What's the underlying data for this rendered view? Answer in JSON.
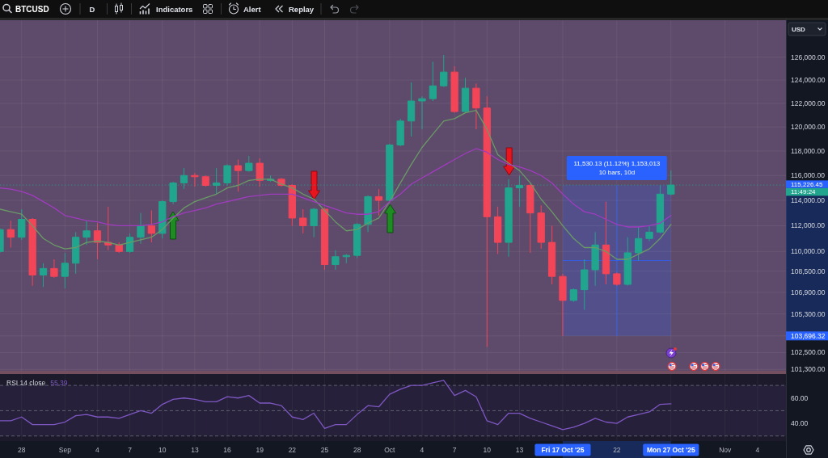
{
  "chart_data": [
    {
      "type": "candlestick",
      "title": "BTCUSD",
      "x": [
        "2025-08-26",
        "2025-08-27",
        "2025-08-28",
        "2025-08-29",
        "2025-08-30",
        "2025-08-31",
        "2025-09-01",
        "2025-09-02",
        "2025-09-03",
        "2025-09-04",
        "2025-09-05",
        "2025-09-06",
        "2025-09-07",
        "2025-09-08",
        "2025-09-09",
        "2025-09-10",
        "2025-09-11",
        "2025-09-12",
        "2025-09-13",
        "2025-09-14",
        "2025-09-15",
        "2025-09-16",
        "2025-09-17",
        "2025-09-18",
        "2025-09-19",
        "2025-09-20",
        "2025-09-21",
        "2025-09-22",
        "2025-09-23",
        "2025-09-24",
        "2025-09-25",
        "2025-09-26",
        "2025-09-27",
        "2025-09-28",
        "2025-09-29",
        "2025-09-30",
        "2025-10-01",
        "2025-10-02",
        "2025-10-03",
        "2025-10-04",
        "2025-10-05",
        "2025-10-06",
        "2025-10-07",
        "2025-10-08",
        "2025-10-09",
        "2025-10-10",
        "2025-10-11",
        "2025-10-12",
        "2025-10-13",
        "2025-10-14",
        "2025-10-15",
        "2025-10-16",
        "2025-10-17",
        "2025-10-18",
        "2025-10-19",
        "2025-10-20",
        "2025-10-21",
        "2025-10-22",
        "2025-10-23",
        "2025-10-24",
        "2025-10-25",
        "2025-10-26",
        "2025-10-27"
      ],
      "ohlc": [
        [
          110000,
          111800,
          109900,
          111700
        ],
        [
          111700,
          112400,
          110300,
          111100
        ],
        [
          111100,
          113300,
          110900,
          112500
        ],
        [
          112500,
          112600,
          107400,
          108200
        ],
        [
          108200,
          109100,
          107300,
          108700
        ],
        [
          108700,
          109400,
          108000,
          108100
        ],
        [
          108100,
          109900,
          107200,
          109100
        ],
        [
          109100,
          111500,
          108300,
          111100
        ],
        [
          111100,
          112400,
          110500,
          111600
        ],
        [
          111600,
          112200,
          109400,
          110700
        ],
        [
          110700,
          113500,
          110100,
          110500
        ],
        [
          110500,
          110700,
          109900,
          110000
        ],
        [
          110000,
          111400,
          109900,
          111100
        ],
        [
          111100,
          113000,
          110600,
          112000
        ],
        [
          112000,
          113200,
          110700,
          111400
        ],
        [
          111400,
          114000,
          111000,
          113900
        ],
        [
          113900,
          115500,
          113700,
          115400
        ],
        [
          115400,
          116600,
          114900,
          116000
        ],
        [
          116000,
          116200,
          115100,
          115900
        ],
        [
          115900,
          116000,
          115100,
          115200
        ],
        [
          115200,
          116600,
          114500,
          115400
        ],
        [
          115400,
          116900,
          115200,
          116800
        ],
        [
          116800,
          117300,
          114700,
          116400
        ],
        [
          116400,
          117600,
          116300,
          117000
        ],
        [
          117000,
          117400,
          115100,
          115600
        ],
        [
          115600,
          116000,
          115500,
          115700
        ],
        [
          115700,
          115800,
          115100,
          115200
        ],
        [
          115200,
          115300,
          112000,
          112600
        ],
        [
          112600,
          113300,
          111400,
          112000
        ],
        [
          112000,
          113400,
          111100,
          113300
        ],
        [
          113300,
          113400,
          108600,
          109000
        ],
        [
          109000,
          110100,
          108600,
          109600
        ],
        [
          109600,
          109800,
          109100,
          109700
        ],
        [
          109700,
          112200,
          109500,
          112100
        ],
        [
          112100,
          114400,
          111500,
          114300
        ],
        [
          114300,
          114900,
          112800,
          114000
        ],
        [
          114000,
          118600,
          113900,
          118500
        ],
        [
          118500,
          120700,
          118400,
          120500
        ],
        [
          120500,
          123800,
          119200,
          122200
        ],
        [
          122200,
          122600,
          119800,
          122400
        ],
        [
          122400,
          125600,
          122200,
          123500
        ],
        [
          123500,
          126200,
          123400,
          124700
        ],
        [
          124700,
          125200,
          121200,
          121300
        ],
        [
          121300,
          124200,
          121200,
          123300
        ],
        [
          123300,
          123700,
          119800,
          121600
        ],
        [
          121600,
          122600,
          102900,
          112700
        ],
        [
          112700,
          113500,
          109800,
          110700
        ],
        [
          110700,
          115700,
          109600,
          115000
        ],
        [
          115000,
          116000,
          113500,
          115200
        ],
        [
          115200,
          115300,
          109900,
          113000
        ],
        [
          113000,
          113600,
          110200,
          110700
        ],
        [
          110700,
          112000,
          107500,
          108100
        ],
        [
          108100,
          108300,
          103696.32,
          106300
        ],
        [
          106300,
          107200,
          106200,
          107100
        ],
        [
          107100,
          109400,
          105600,
          108600
        ],
        [
          108600,
          111500,
          107400,
          110500
        ],
        [
          110500,
          113900,
          107500,
          108300
        ],
        [
          108300,
          108400,
          107400,
          107500
        ],
        [
          107500,
          111100,
          107400,
          109900
        ],
        [
          109900,
          111900,
          109300,
          111000
        ],
        [
          111000,
          112000,
          110800,
          111500
        ],
        [
          111500,
          115200,
          111400,
          114500
        ],
        [
          114500,
          116400,
          114400,
          115226.45
        ]
      ],
      "colors": [
        "#22a58e",
        "#f24558",
        "#22a58e",
        "#f24558",
        "#22a58e",
        "#f24558",
        "#22a58e",
        "#22a58e",
        "#22a58e",
        "#f24558",
        "#f24558",
        "#f24558",
        "#22a58e",
        "#22a58e",
        "#f24558",
        "#22a58e",
        "#22a58e",
        "#22a58e",
        "#f24558",
        "#f24558",
        "#22a58e",
        "#22a58e",
        "#f24558",
        "#22a58e",
        "#f24558",
        "#22a58e",
        "#f24558",
        "#f24558",
        "#f24558",
        "#22a58e",
        "#f24558",
        "#22a58e",
        "#22a58e",
        "#22a58e",
        "#22a58e",
        "#f24558",
        "#22a58e",
        "#22a58e",
        "#22a58e",
        "#22a58e",
        "#22a58e",
        "#22a58e",
        "#f24558",
        "#22a58e",
        "#f24558",
        "#f24558",
        "#f24558",
        "#22a58e",
        "#22a58e",
        "#f24558",
        "#f24558",
        "#f24558",
        "#f24558",
        "#22a58e",
        "#22a58e",
        "#22a58e",
        "#f24558",
        "#f24558",
        "#22a58e",
        "#22a58e",
        "#22a58e",
        "#22a58e",
        "#22a58e"
      ],
      "series": [
        {
          "type": "line",
          "color": "#6a9a66",
          "values": [
            113300,
            113100,
            112900,
            112000,
            111000,
            110500,
            110200,
            110300,
            110700,
            110800,
            110700,
            110500,
            110700,
            110900,
            111100,
            111700,
            112600,
            113400,
            113900,
            114200,
            114500,
            115000,
            115200,
            115600,
            115700,
            115700,
            115300,
            115000,
            114500,
            114100,
            113200,
            112300,
            111600,
            111700,
            112200,
            112600,
            113900,
            115400,
            116900,
            118300,
            119400,
            120500,
            120700,
            121200,
            121400,
            119800,
            117700,
            117000,
            116400,
            115400,
            114100,
            113100,
            112000,
            111000,
            110300,
            110300,
            110000,
            109400,
            109400,
            109800,
            110200,
            111000,
            112100
          ]
        },
        {
          "type": "line",
          "color": "#a03cc0",
          "values": [
            115000,
            114900,
            114700,
            114400,
            113900,
            113400,
            112800,
            112600,
            112400,
            112300,
            112100,
            112000,
            112000,
            112000,
            112100,
            112300,
            112700,
            113000,
            113200,
            113400,
            113700,
            113900,
            114100,
            114300,
            114400,
            114500,
            114500,
            114500,
            114200,
            113900,
            113600,
            113300,
            113000,
            112900,
            112900,
            113100,
            113900,
            114500,
            115300,
            115800,
            116300,
            116800,
            117300,
            117800,
            118200,
            117900,
            117300,
            116900,
            116700,
            116400,
            116000,
            115400,
            114500,
            113700,
            113100,
            112900,
            112500,
            112100,
            111900,
            111900,
            112000,
            112200,
            112800
          ]
        }
      ],
      "xlim": [
        "2025-08-26",
        "2025-11-06T15:00"
      ],
      "xticks": [
        "2025-08-28",
        "2025-09-01",
        "2025-09-04",
        "2025-09-07",
        "2025-09-10",
        "2025-09-13",
        "2025-09-16",
        "2025-09-19",
        "2025-09-22",
        "2025-09-25",
        "2025-09-28",
        "2025-10-01",
        "2025-10-04",
        "2025-10-07",
        "2025-10-10",
        "2025-10-13",
        "2025-10-17",
        "2025-10-22",
        "2025-10-27",
        "2025-11-01",
        "2025-11-04"
      ],
      "ylim": [
        101200,
        129300
      ],
      "yticks": [
        {
          "value": 126000,
          "label": "126,000.00"
        },
        {
          "value": 124000,
          "label": "124,000.00"
        },
        {
          "value": 122000,
          "label": "122,000.00"
        },
        {
          "value": 120000,
          "label": "120,000.00"
        },
        {
          "value": 118000,
          "label": "118,000.00"
        },
        {
          "value": 116000,
          "label": "116,000.00"
        },
        {
          "value": 114000,
          "label": "114,000.00"
        },
        {
          "value": 112000,
          "label": "112,000.00"
        },
        {
          "value": 110000,
          "label": "110,000.00"
        },
        {
          "value": 108500,
          "label": "108,500.00"
        },
        {
          "value": 106900,
          "label": "106,900.00"
        },
        {
          "value": 105300,
          "label": "105,300.00"
        },
        {
          "value": 103696.32,
          "label": "103,696.32"
        },
        {
          "value": 102500,
          "label": "102,500.00"
        },
        {
          "value": 101300,
          "label": "101,300.00"
        }
      ],
      "log": true,
      "grid": true,
      "tick_labels": "y",
      "ref_lines": [
        {
          "axis": "y",
          "value": 115226.45,
          "label": "115,226.45\n11:49:24",
          "color": "#22a58e",
          "line_style": "dotted"
        }
      ],
      "bands": [
        {
          "axis": "x",
          "from": "2025-10-17",
          "to": "2025-10-27",
          "label": "11,530.13 (11.12%) 1,153,013\n10 bars, 10d",
          "color": "#2962ff"
        }
      ],
      "annotations": [
        "D",
        "Indicators",
        "Alert",
        "Replay",
        "USD"
      ]
    },
    {
      "type": "line",
      "title": "RSI 14 close",
      "subtitle": "55.39",
      "x": [
        "2025-08-26",
        "2025-08-27",
        "2025-08-28",
        "2025-08-29",
        "2025-08-30",
        "2025-08-31",
        "2025-09-01",
        "2025-09-02",
        "2025-09-03",
        "2025-09-04",
        "2025-09-05",
        "2025-09-06",
        "2025-09-07",
        "2025-09-08",
        "2025-09-09",
        "2025-09-10",
        "2025-09-11",
        "2025-09-12",
        "2025-09-13",
        "2025-09-14",
        "2025-09-15",
        "2025-09-16",
        "2025-09-17",
        "2025-09-18",
        "2025-09-19",
        "2025-09-20",
        "2025-09-21",
        "2025-09-22",
        "2025-09-23",
        "2025-09-24",
        "2025-09-25",
        "2025-09-26",
        "2025-09-27",
        "2025-09-28",
        "2025-09-29",
        "2025-09-30",
        "2025-10-01",
        "2025-10-02",
        "2025-10-03",
        "2025-10-04",
        "2025-10-05",
        "2025-10-06",
        "2025-10-07",
        "2025-10-08",
        "2025-10-09",
        "2025-10-10",
        "2025-10-11",
        "2025-10-12",
        "2025-10-13",
        "2025-10-14",
        "2025-10-15",
        "2025-10-16",
        "2025-10-17",
        "2025-10-18",
        "2025-10-19",
        "2025-10-20",
        "2025-10-21",
        "2025-10-22",
        "2025-10-23",
        "2025-10-24",
        "2025-10-25",
        "2025-10-26",
        "2025-10-27"
      ],
      "series": [
        {
          "color": "#7e57c2",
          "values": [
            42,
            42,
            45,
            39,
            39,
            39,
            41,
            46,
            47,
            45,
            45,
            44,
            47,
            50,
            48,
            55,
            59,
            60,
            59,
            57,
            57,
            61,
            60,
            62,
            56,
            56,
            54,
            45,
            43,
            48,
            36,
            39,
            39,
            47,
            54,
            53,
            63,
            67,
            70,
            70,
            72,
            74,
            62,
            66,
            61,
            42,
            39,
            48,
            48,
            44,
            41,
            38,
            35,
            37,
            40,
            44,
            41,
            40,
            45,
            47,
            49,
            55,
            55.39
          ]
        }
      ],
      "xlim": [
        "2025-08-26",
        "2025-11-06T15:00"
      ],
      "xticks": [
        {
          "value": "2025-08-28",
          "label": "28"
        },
        {
          "value": "2025-09-01",
          "label": "Sep"
        },
        {
          "value": "2025-09-04",
          "label": "4"
        },
        {
          "value": "2025-09-07",
          "label": "7"
        },
        {
          "value": "2025-09-10",
          "label": "10"
        },
        {
          "value": "2025-09-13",
          "label": "13"
        },
        {
          "value": "2025-09-16",
          "label": "16"
        },
        {
          "value": "2025-09-19",
          "label": "19"
        },
        {
          "value": "2025-09-22",
          "label": "22"
        },
        {
          "value": "2025-09-25",
          "label": "25"
        },
        {
          "value": "2025-09-28",
          "label": "28"
        },
        {
          "value": "2025-10-01",
          "label": "Oct"
        },
        {
          "value": "2025-10-04",
          "label": "4"
        },
        {
          "value": "2025-10-07",
          "label": "7"
        },
        {
          "value": "2025-10-10",
          "label": "10"
        },
        {
          "value": "2025-10-13",
          "label": "13"
        },
        {
          "value": "2025-10-17",
          "label": "Fri 17 Oct '25"
        },
        {
          "value": "2025-10-22",
          "label": "22"
        },
        {
          "value": "2025-10-27",
          "label": "Mon 27 Oct '25"
        },
        {
          "value": "2025-11-01",
          "label": "Nov"
        },
        {
          "value": "2025-11-04",
          "label": "4"
        }
      ],
      "ylim": [
        26,
        79
      ],
      "yticks": [
        {
          "value": 40,
          "label": "40.00"
        },
        {
          "value": 60,
          "label": "60.00"
        }
      ],
      "grid": "x",
      "ref_lines": [
        {
          "axis": "y",
          "value": 70,
          "color": "#787b86",
          "line_style": "dashed"
        },
        {
          "axis": "y",
          "value": 50,
          "color": "#787b86",
          "line_style": "dashed"
        },
        {
          "axis": "y",
          "value": 30,
          "color": "#787b86",
          "line_style": "dashed"
        }
      ],
      "bands": [
        {
          "axis": "y",
          "from": 30,
          "to": 70,
          "color": "#7e57c2"
        }
      ]
    }
  ]
}
